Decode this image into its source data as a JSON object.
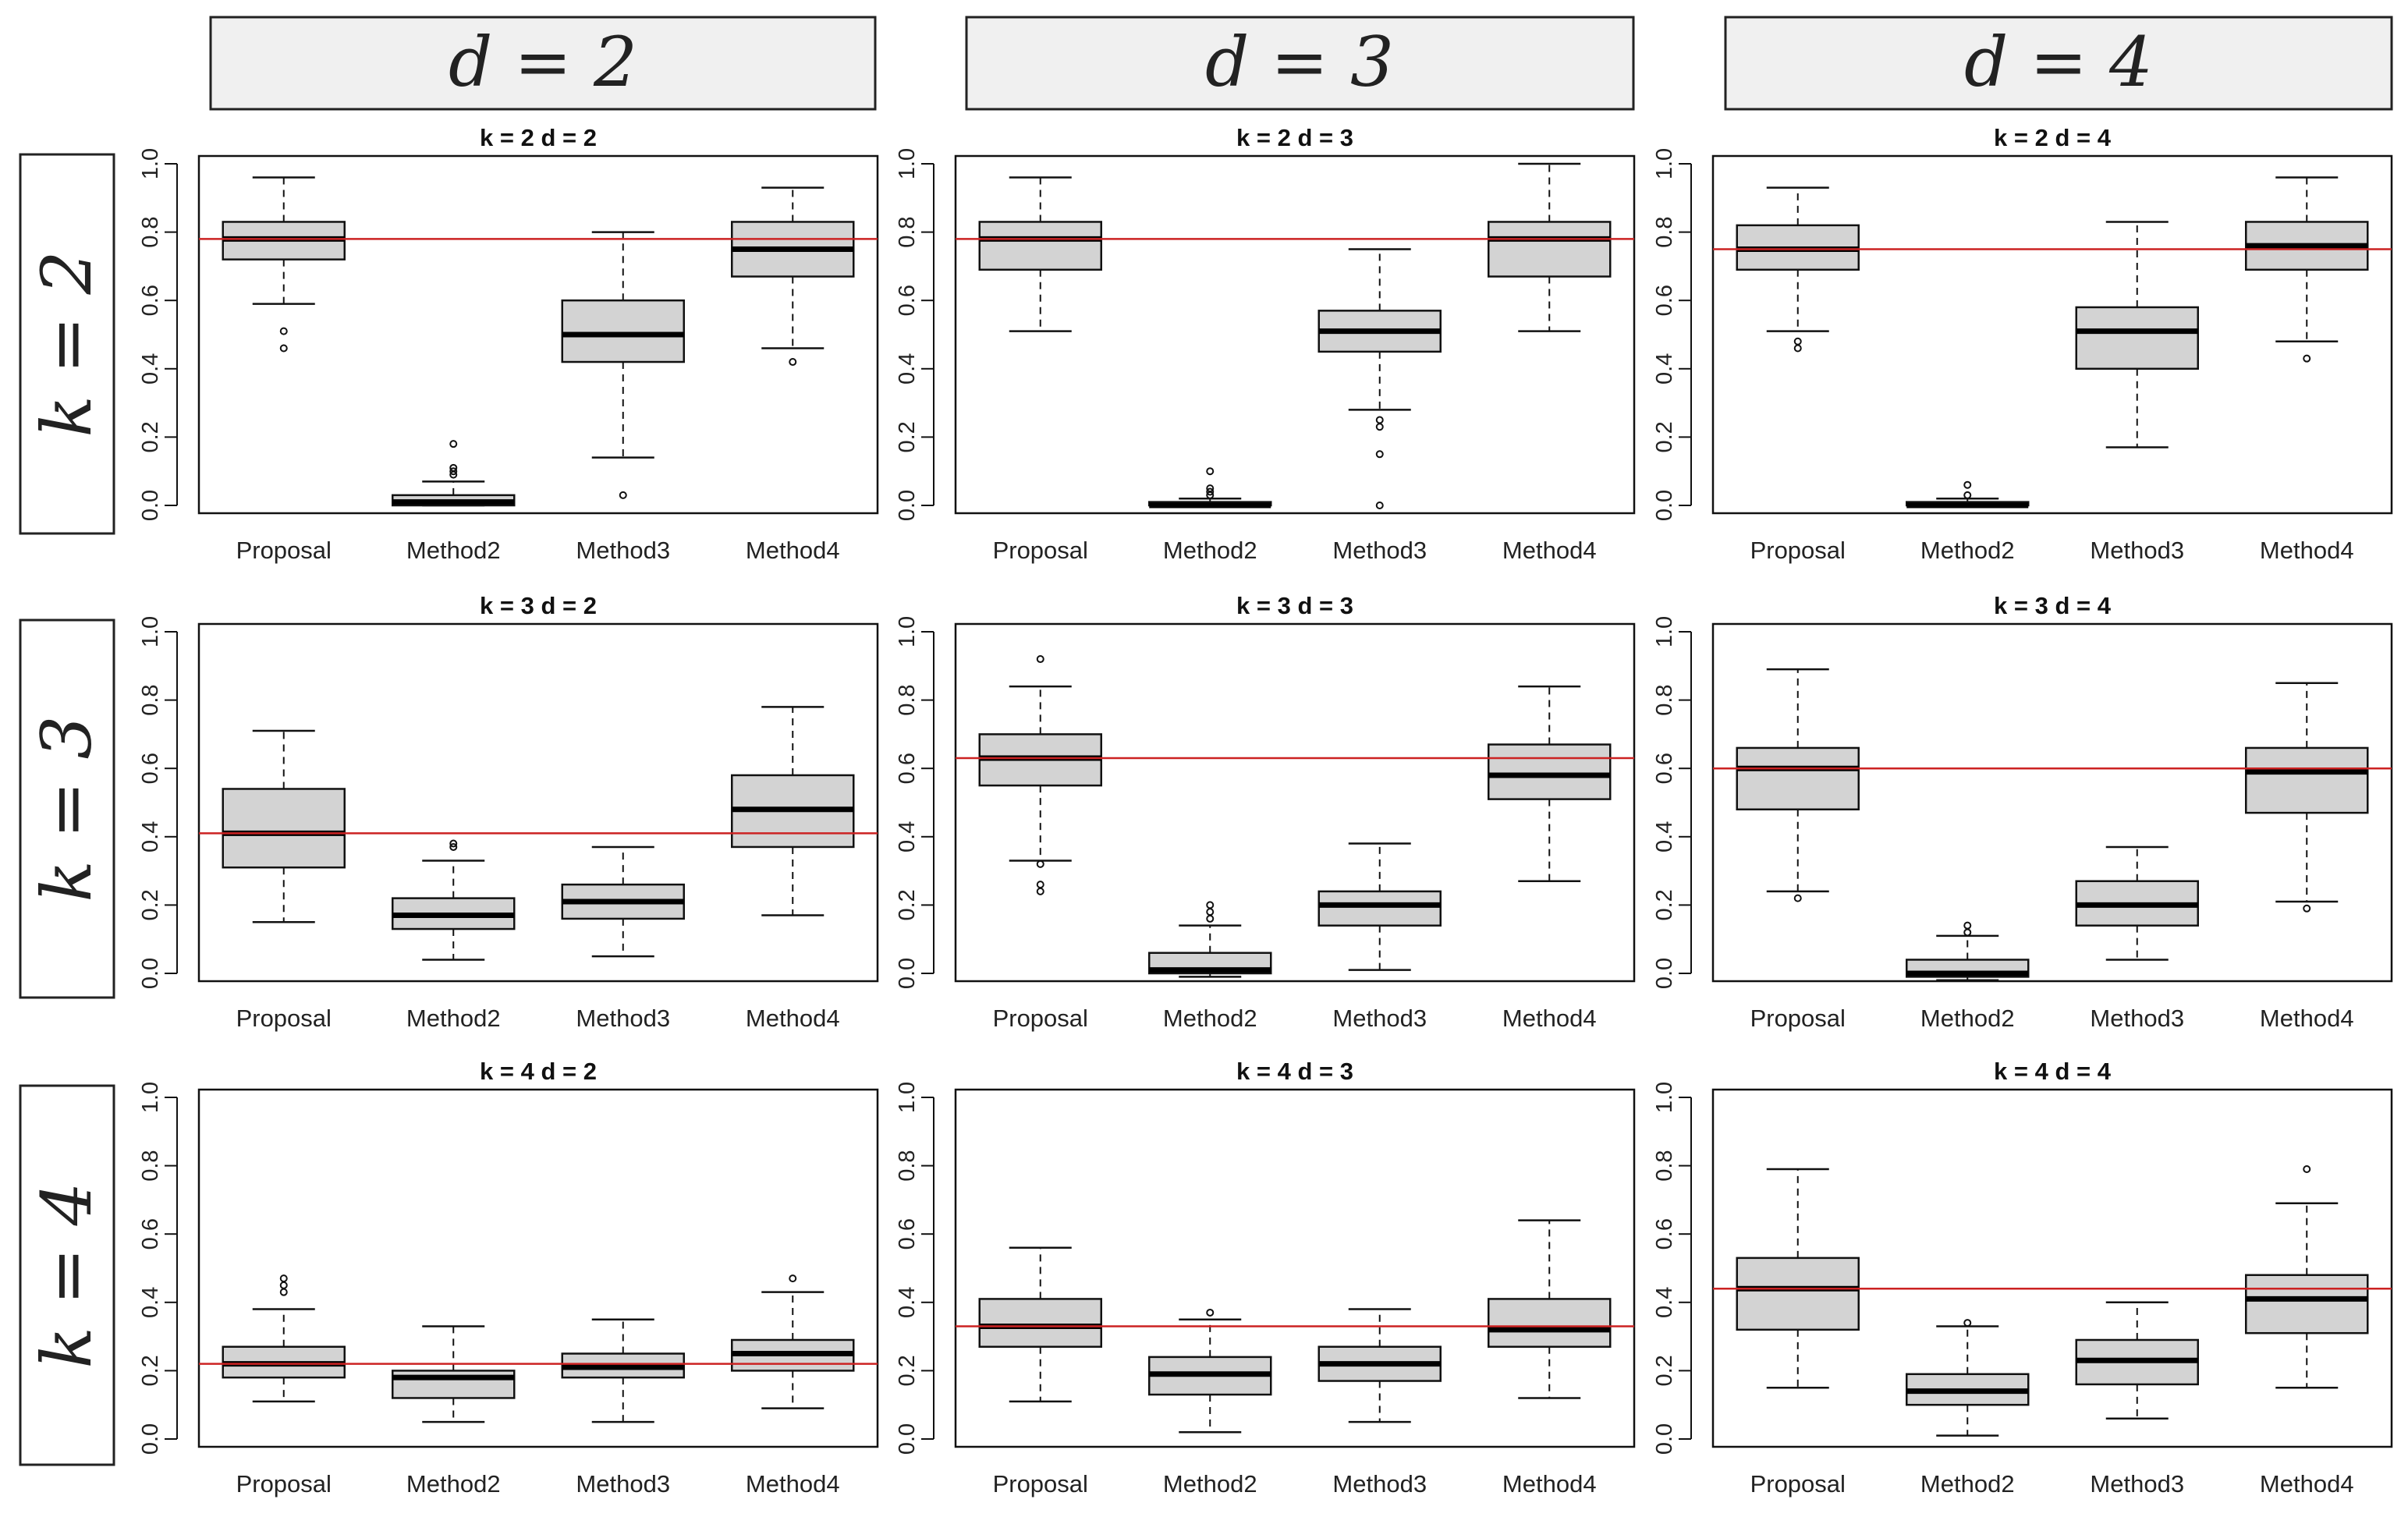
{
  "column_headers": [
    "d = 2",
    "d = 3",
    "d = 4"
  ],
  "row_headers": [
    "k = 2",
    "k = 3",
    "k = 4"
  ],
  "colors": {
    "box_fill": "#d3d3d3",
    "reference_line": "#cc2222",
    "strip_fill": "#f0f0f0"
  },
  "chart_data": [
    {
      "type": "box",
      "title": "k = 2 d = 2",
      "categories": [
        "Proposal",
        "Method2",
        "Method3",
        "Method4"
      ],
      "ylim": [
        0,
        1
      ],
      "yticks": [
        "0.0",
        "0.2",
        "0.4",
        "0.6",
        "0.8",
        "1.0"
      ],
      "reference": 0.78,
      "boxes": [
        {
          "whisker_low": 0.59,
          "q1": 0.72,
          "median": 0.78,
          "q3": 0.83,
          "whisker_high": 0.96,
          "outliers": [
            0.51,
            0.46
          ]
        },
        {
          "whisker_low": 0.0,
          "q1": 0.0,
          "median": 0.01,
          "q3": 0.03,
          "whisker_high": 0.07,
          "outliers": [
            0.09,
            0.1,
            0.11,
            0.18
          ]
        },
        {
          "whisker_low": 0.14,
          "q1": 0.42,
          "median": 0.5,
          "q3": 0.6,
          "whisker_high": 0.8,
          "outliers": [
            0.03
          ]
        },
        {
          "whisker_low": 0.46,
          "q1": 0.67,
          "median": 0.75,
          "q3": 0.83,
          "whisker_high": 0.93,
          "outliers": [
            0.42
          ]
        }
      ]
    },
    {
      "type": "box",
      "title": "k = 2 d = 3",
      "categories": [
        "Proposal",
        "Method2",
        "Method3",
        "Method4"
      ],
      "ylim": [
        0,
        1
      ],
      "yticks": [
        "0.0",
        "0.2",
        "0.4",
        "0.6",
        "0.8",
        "1.0"
      ],
      "reference": 0.78,
      "boxes": [
        {
          "whisker_low": 0.51,
          "q1": 0.69,
          "median": 0.78,
          "q3": 0.83,
          "whisker_high": 0.96,
          "outliers": []
        },
        {
          "whisker_low": 0.0,
          "q1": 0.0,
          "median": 0.0,
          "q3": 0.01,
          "whisker_high": 0.02,
          "outliers": [
            0.03,
            0.04,
            0.05,
            0.1
          ]
        },
        {
          "whisker_low": 0.28,
          "q1": 0.45,
          "median": 0.51,
          "q3": 0.57,
          "whisker_high": 0.75,
          "outliers": [
            0.25,
            0.23,
            0.15,
            0.0
          ]
        },
        {
          "whisker_low": 0.51,
          "q1": 0.67,
          "median": 0.78,
          "q3": 0.83,
          "whisker_high": 1.0,
          "outliers": []
        }
      ]
    },
    {
      "type": "box",
      "title": "k = 2 d = 4",
      "categories": [
        "Proposal",
        "Method2",
        "Method3",
        "Method4"
      ],
      "ylim": [
        0,
        1
      ],
      "yticks": [
        "0.0",
        "0.2",
        "0.4",
        "0.6",
        "0.8",
        "1.0"
      ],
      "reference": 0.75,
      "boxes": [
        {
          "whisker_low": 0.51,
          "q1": 0.69,
          "median": 0.75,
          "q3": 0.82,
          "whisker_high": 0.93,
          "outliers": [
            0.48,
            0.46
          ]
        },
        {
          "whisker_low": 0.0,
          "q1": 0.0,
          "median": 0.0,
          "q3": 0.01,
          "whisker_high": 0.02,
          "outliers": [
            0.03,
            0.06
          ]
        },
        {
          "whisker_low": 0.17,
          "q1": 0.4,
          "median": 0.51,
          "q3": 0.58,
          "whisker_high": 0.83,
          "outliers": []
        },
        {
          "whisker_low": 0.48,
          "q1": 0.69,
          "median": 0.76,
          "q3": 0.83,
          "whisker_high": 0.96,
          "outliers": [
            0.43
          ]
        }
      ]
    },
    {
      "type": "box",
      "title": "k = 3 d = 2",
      "categories": [
        "Proposal",
        "Method2",
        "Method3",
        "Method4"
      ],
      "ylim": [
        0,
        1
      ],
      "yticks": [
        "0.0",
        "0.2",
        "0.4",
        "0.6",
        "0.8",
        "1.0"
      ],
      "reference": 0.41,
      "boxes": [
        {
          "whisker_low": 0.15,
          "q1": 0.31,
          "median": 0.41,
          "q3": 0.54,
          "whisker_high": 0.71,
          "outliers": []
        },
        {
          "whisker_low": 0.04,
          "q1": 0.13,
          "median": 0.17,
          "q3": 0.22,
          "whisker_high": 0.33,
          "outliers": [
            0.37,
            0.38
          ]
        },
        {
          "whisker_low": 0.05,
          "q1": 0.16,
          "median": 0.21,
          "q3": 0.26,
          "whisker_high": 0.37,
          "outliers": []
        },
        {
          "whisker_low": 0.17,
          "q1": 0.37,
          "median": 0.48,
          "q3": 0.58,
          "whisker_high": 0.78,
          "outliers": []
        }
      ]
    },
    {
      "type": "box",
      "title": "k = 3 d = 3",
      "categories": [
        "Proposal",
        "Method2",
        "Method3",
        "Method4"
      ],
      "ylim": [
        0,
        1
      ],
      "yticks": [
        "0.0",
        "0.2",
        "0.4",
        "0.6",
        "0.8",
        "1.0"
      ],
      "reference": 0.63,
      "boxes": [
        {
          "whisker_low": 0.33,
          "q1": 0.55,
          "median": 0.63,
          "q3": 0.7,
          "whisker_high": 0.84,
          "outliers": [
            0.92,
            0.32,
            0.26,
            0.24
          ]
        },
        {
          "whisker_low": -0.01,
          "q1": 0.0,
          "median": 0.01,
          "q3": 0.06,
          "whisker_high": 0.14,
          "outliers": [
            0.16,
            0.18,
            0.2
          ]
        },
        {
          "whisker_low": 0.01,
          "q1": 0.14,
          "median": 0.2,
          "q3": 0.24,
          "whisker_high": 0.38,
          "outliers": []
        },
        {
          "whisker_low": 0.27,
          "q1": 0.51,
          "median": 0.58,
          "q3": 0.67,
          "whisker_high": 0.84,
          "outliers": []
        }
      ]
    },
    {
      "type": "box",
      "title": "k = 3 d = 4",
      "categories": [
        "Proposal",
        "Method2",
        "Method3",
        "Method4"
      ],
      "ylim": [
        0,
        1
      ],
      "yticks": [
        "0.0",
        "0.2",
        "0.4",
        "0.6",
        "0.8",
        "1.0"
      ],
      "reference": 0.6,
      "boxes": [
        {
          "whisker_low": 0.24,
          "q1": 0.48,
          "median": 0.6,
          "q3": 0.66,
          "whisker_high": 0.89,
          "outliers": [
            0.22
          ]
        },
        {
          "whisker_low": -0.02,
          "q1": -0.01,
          "median": 0.0,
          "q3": 0.04,
          "whisker_high": 0.11,
          "outliers": [
            0.12,
            0.14
          ]
        },
        {
          "whisker_low": 0.04,
          "q1": 0.14,
          "median": 0.2,
          "q3": 0.27,
          "whisker_high": 0.37,
          "outliers": []
        },
        {
          "whisker_low": 0.21,
          "q1": 0.47,
          "median": 0.59,
          "q3": 0.66,
          "whisker_high": 0.85,
          "outliers": [
            0.19
          ]
        }
      ]
    },
    {
      "type": "box",
      "title": "k = 4 d = 2",
      "categories": [
        "Proposal",
        "Method2",
        "Method3",
        "Method4"
      ],
      "ylim": [
        0,
        1
      ],
      "yticks": [
        "0.0",
        "0.2",
        "0.4",
        "0.6",
        "0.8",
        "1.0"
      ],
      "reference": 0.22,
      "boxes": [
        {
          "whisker_low": 0.11,
          "q1": 0.18,
          "median": 0.22,
          "q3": 0.27,
          "whisker_high": 0.38,
          "outliers": [
            0.43,
            0.45,
            0.47
          ]
        },
        {
          "whisker_low": 0.05,
          "q1": 0.12,
          "median": 0.18,
          "q3": 0.2,
          "whisker_high": 0.33,
          "outliers": []
        },
        {
          "whisker_low": 0.05,
          "q1": 0.18,
          "median": 0.21,
          "q3": 0.25,
          "whisker_high": 0.35,
          "outliers": []
        },
        {
          "whisker_low": 0.09,
          "q1": 0.2,
          "median": 0.25,
          "q3": 0.29,
          "whisker_high": 0.43,
          "outliers": [
            0.47
          ]
        }
      ]
    },
    {
      "type": "box",
      "title": "k = 4 d = 3",
      "categories": [
        "Proposal",
        "Method2",
        "Method3",
        "Method4"
      ],
      "ylim": [
        0,
        1
      ],
      "yticks": [
        "0.0",
        "0.2",
        "0.4",
        "0.6",
        "0.8",
        "1.0"
      ],
      "reference": 0.33,
      "boxes": [
        {
          "whisker_low": 0.11,
          "q1": 0.27,
          "median": 0.33,
          "q3": 0.41,
          "whisker_high": 0.56,
          "outliers": []
        },
        {
          "whisker_low": 0.02,
          "q1": 0.13,
          "median": 0.19,
          "q3": 0.24,
          "whisker_high": 0.35,
          "outliers": [
            0.37
          ]
        },
        {
          "whisker_low": 0.05,
          "q1": 0.17,
          "median": 0.22,
          "q3": 0.27,
          "whisker_high": 0.38,
          "outliers": []
        },
        {
          "whisker_low": 0.12,
          "q1": 0.27,
          "median": 0.32,
          "q3": 0.41,
          "whisker_high": 0.64,
          "outliers": []
        }
      ]
    },
    {
      "type": "box",
      "title": "k = 4 d = 4",
      "categories": [
        "Proposal",
        "Method2",
        "Method3",
        "Method4"
      ],
      "ylim": [
        0,
        1
      ],
      "yticks": [
        "0.0",
        "0.2",
        "0.4",
        "0.6",
        "0.8",
        "1.0"
      ],
      "reference": 0.44,
      "boxes": [
        {
          "whisker_low": 0.15,
          "q1": 0.32,
          "median": 0.44,
          "q3": 0.53,
          "whisker_high": 0.79,
          "outliers": []
        },
        {
          "whisker_low": 0.01,
          "q1": 0.1,
          "median": 0.14,
          "q3": 0.19,
          "whisker_high": 0.33,
          "outliers": [
            0.34
          ]
        },
        {
          "whisker_low": 0.06,
          "q1": 0.16,
          "median": 0.23,
          "q3": 0.29,
          "whisker_high": 0.4,
          "outliers": []
        },
        {
          "whisker_low": 0.15,
          "q1": 0.31,
          "median": 0.41,
          "q3": 0.48,
          "whisker_high": 0.69,
          "outliers": [
            0.79
          ]
        }
      ]
    }
  ]
}
